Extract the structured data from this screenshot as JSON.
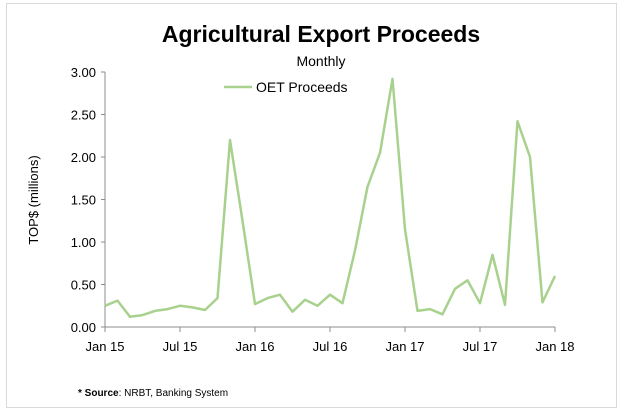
{
  "chart_data": {
    "type": "line",
    "title": "Agricultural Export Proceeds",
    "subtitle": "Monthly",
    "ylabel": "TOP$ (millions)",
    "xlabel": "",
    "ylim": [
      0,
      3.0
    ],
    "yticks": [
      0,
      0.5,
      1.0,
      1.5,
      2.0,
      2.5,
      3.0
    ],
    "ytick_labels": [
      "0.00",
      "0.50",
      "1.00",
      "1.50",
      "2.00",
      "2.50",
      "3.00"
    ],
    "xtick_labels": [
      "Jan 15",
      "Jul 15",
      "Jan 16",
      "Jul 16",
      "Jan 17",
      "Jul 17",
      "Jan 18"
    ],
    "xtick_positions": [
      0,
      6,
      12,
      18,
      24,
      30,
      36
    ],
    "x": [
      "Jan 15",
      "Feb 15",
      "Mar 15",
      "Apr 15",
      "May 15",
      "Jun 15",
      "Jul 15",
      "Aug 15",
      "Sep 15",
      "Oct 15",
      "Nov 15",
      "Dec 15",
      "Jan 16",
      "Feb 16",
      "Mar 16",
      "Apr 16",
      "May 16",
      "Jun 16",
      "Jul 16",
      "Aug 16",
      "Sep 16",
      "Oct 16",
      "Nov 16",
      "Dec 16",
      "Jan 17",
      "Feb 17",
      "Mar 17",
      "Apr 17",
      "May 17",
      "Jun 17",
      "Jul 17",
      "Aug 17",
      "Sep 17",
      "Oct 17",
      "Nov 17",
      "Dec 17",
      "Jan 18"
    ],
    "series": [
      {
        "name": "OET Proceeds",
        "color": "#a9d18e",
        "values": [
          0.25,
          0.31,
          0.12,
          0.14,
          0.19,
          0.21,
          0.25,
          0.23,
          0.2,
          0.34,
          2.2,
          1.25,
          0.27,
          0.34,
          0.38,
          0.18,
          0.32,
          0.25,
          0.38,
          0.28,
          0.9,
          1.65,
          2.05,
          2.92,
          1.15,
          0.19,
          0.21,
          0.15,
          0.45,
          0.55,
          0.28,
          0.85,
          0.26,
          2.42,
          2.0,
          0.29,
          0.6
        ]
      }
    ],
    "legend_position": "top-left",
    "grid": false
  },
  "source_note": {
    "label": "* Source",
    "text": ": NRBT, Banking System"
  }
}
